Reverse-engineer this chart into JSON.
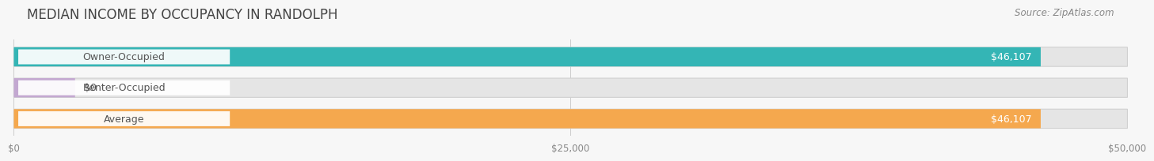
{
  "title": "MEDIAN INCOME BY OCCUPANCY IN RANDOLPH",
  "source": "Source: ZipAtlas.com",
  "categories": [
    "Owner-Occupied",
    "Renter-Occupied",
    "Average"
  ],
  "values": [
    46107,
    0,
    46107
  ],
  "bar_colors": [
    "#34b5b5",
    "#c3a8d1",
    "#f5a84e"
  ],
  "label_color": "#555555",
  "value_labels": [
    "$46,107",
    "$0",
    "$46,107"
  ],
  "xlim": [
    0,
    50000
  ],
  "xtick_labels": [
    "$0",
    "$25,000",
    "$50,000"
  ],
  "bar_height": 0.62,
  "background_color": "#f7f7f7",
  "bar_bg_color": "#e5e5e5",
  "title_fontsize": 12,
  "source_fontsize": 8.5,
  "label_fontsize": 9,
  "value_fontsize": 9
}
